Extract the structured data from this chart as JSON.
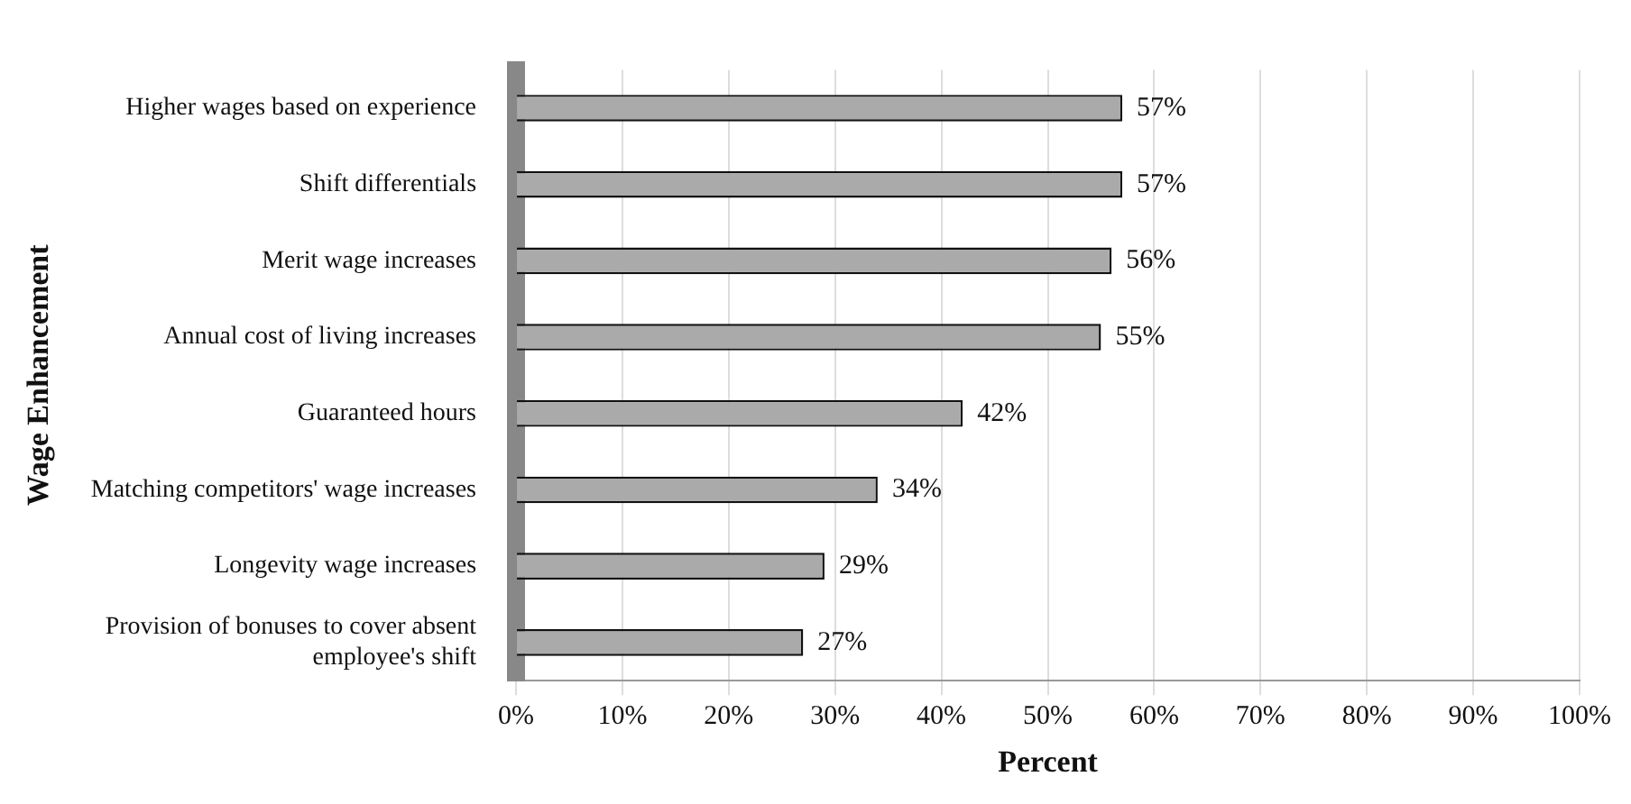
{
  "chart_data": {
    "type": "bar",
    "orientation": "horizontal",
    "xlabel": "Percent",
    "ylabel": "Wage Enhancement",
    "categories": [
      "Higher wages based on experience",
      "Shift differentials",
      "Merit wage increases",
      "Annual cost of living increases",
      "Guaranteed hours",
      "Matching competitors' wage increases",
      "Longevity wage increases",
      "Provision of bonuses to cover absent employee's shift"
    ],
    "values": [
      57,
      57,
      56,
      55,
      42,
      34,
      29,
      27
    ],
    "value_labels": [
      "57%",
      "57%",
      "56%",
      "55%",
      "42%",
      "34%",
      "29%",
      "27%"
    ],
    "color": "#aaaaaa",
    "xlim": [
      0,
      100
    ],
    "xticks": [
      {
        "value": 0,
        "label": "0%"
      },
      {
        "value": 10,
        "label": "10%"
      },
      {
        "value": 20,
        "label": "20%"
      },
      {
        "value": 30,
        "label": "30%"
      },
      {
        "value": 40,
        "label": "40%"
      },
      {
        "value": 50,
        "label": "50%"
      },
      {
        "value": 60,
        "label": "60%"
      },
      {
        "value": 70,
        "label": "70%"
      },
      {
        "value": 80,
        "label": "80%"
      },
      {
        "value": 90,
        "label": "90%"
      },
      {
        "value": 100,
        "label": "100%"
      }
    ],
    "grid": "x",
    "legend": false
  }
}
